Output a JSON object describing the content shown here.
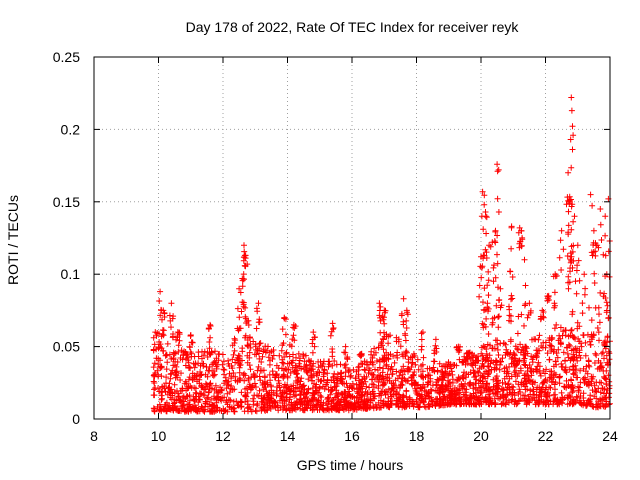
{
  "chart_data": {
    "type": "scatter",
    "title": "Day 178 of 2022, Rate Of TEC Index for receiver reyk",
    "xlabel": "GPS time / hours",
    "ylabel": "ROTI / TECUs",
    "xlim": [
      8,
      24
    ],
    "ylim": [
      0,
      0.25
    ],
    "xticks": [
      8,
      10,
      12,
      14,
      16,
      18,
      20,
      22,
      24
    ],
    "xtick_labels": [
      "8",
      "10",
      "12",
      "14",
      "16",
      "18",
      "20",
      "22",
      "24"
    ],
    "yticks": [
      0,
      0.05,
      0.1,
      0.15,
      0.2,
      0.25
    ],
    "ytick_labels": [
      "0",
      "0.05",
      "0.1",
      "0.15",
      "0.2",
      "0.25"
    ],
    "grid": true,
    "marker": "+",
    "color": "#ff0000",
    "data_range_x": [
      9.85,
      24
    ],
    "envelope": [
      {
        "x": 9.85,
        "low": 0.005,
        "high": 0.04
      },
      {
        "x": 10.0,
        "low": 0.005,
        "high": 0.06
      },
      {
        "x": 10.5,
        "low": 0.005,
        "high": 0.05
      },
      {
        "x": 11.0,
        "low": 0.005,
        "high": 0.045
      },
      {
        "x": 11.5,
        "low": 0.005,
        "high": 0.05
      },
      {
        "x": 12.0,
        "low": 0.005,
        "high": 0.045
      },
      {
        "x": 12.5,
        "low": 0.005,
        "high": 0.06
      },
      {
        "x": 13.0,
        "low": 0.005,
        "high": 0.055
      },
      {
        "x": 13.5,
        "low": 0.006,
        "high": 0.05
      },
      {
        "x": 14.0,
        "low": 0.006,
        "high": 0.055
      },
      {
        "x": 14.5,
        "low": 0.006,
        "high": 0.045
      },
      {
        "x": 15.0,
        "low": 0.006,
        "high": 0.04
      },
      {
        "x": 15.5,
        "low": 0.006,
        "high": 0.04
      },
      {
        "x": 16.0,
        "low": 0.006,
        "high": 0.035
      },
      {
        "x": 16.5,
        "low": 0.007,
        "high": 0.045
      },
      {
        "x": 17.0,
        "low": 0.008,
        "high": 0.06
      },
      {
        "x": 17.5,
        "low": 0.008,
        "high": 0.055
      },
      {
        "x": 18.0,
        "low": 0.008,
        "high": 0.045
      },
      {
        "x": 18.5,
        "low": 0.008,
        "high": 0.04
      },
      {
        "x": 19.0,
        "low": 0.01,
        "high": 0.04
      },
      {
        "x": 19.5,
        "low": 0.01,
        "high": 0.045
      },
      {
        "x": 20.0,
        "low": 0.01,
        "high": 0.05
      },
      {
        "x": 20.5,
        "low": 0.01,
        "high": 0.055
      },
      {
        "x": 21.0,
        "low": 0.01,
        "high": 0.05
      },
      {
        "x": 21.5,
        "low": 0.01,
        "high": 0.055
      },
      {
        "x": 22.0,
        "low": 0.01,
        "high": 0.06
      },
      {
        "x": 22.5,
        "low": 0.01,
        "high": 0.065
      },
      {
        "x": 23.0,
        "low": 0.01,
        "high": 0.06
      },
      {
        "x": 23.5,
        "low": 0.008,
        "high": 0.06
      },
      {
        "x": 24.0,
        "low": 0.008,
        "high": 0.06
      }
    ],
    "peaks": [
      {
        "x": 9.9,
        "y": 0.06
      },
      {
        "x": 10.05,
        "y": 0.088
      },
      {
        "x": 10.15,
        "y": 0.075
      },
      {
        "x": 10.4,
        "y": 0.08
      },
      {
        "x": 10.6,
        "y": 0.06
      },
      {
        "x": 11.0,
        "y": 0.058
      },
      {
        "x": 11.6,
        "y": 0.065
      },
      {
        "x": 12.5,
        "y": 0.09
      },
      {
        "x": 12.65,
        "y": 0.12
      },
      {
        "x": 12.68,
        "y": 0.113
      },
      {
        "x": 12.75,
        "y": 0.107
      },
      {
        "x": 12.6,
        "y": 0.097
      },
      {
        "x": 13.1,
        "y": 0.08
      },
      {
        "x": 13.9,
        "y": 0.07
      },
      {
        "x": 14.2,
        "y": 0.065
      },
      {
        "x": 14.8,
        "y": 0.06
      },
      {
        "x": 15.4,
        "y": 0.066
      },
      {
        "x": 15.8,
        "y": 0.05
      },
      {
        "x": 16.3,
        "y": 0.045
      },
      {
        "x": 16.85,
        "y": 0.08
      },
      {
        "x": 17.0,
        "y": 0.075
      },
      {
        "x": 17.6,
        "y": 0.083
      },
      {
        "x": 17.7,
        "y": 0.075
      },
      {
        "x": 18.2,
        "y": 0.06
      },
      {
        "x": 18.6,
        "y": 0.055
      },
      {
        "x": 19.3,
        "y": 0.05
      },
      {
        "x": 19.6,
        "y": 0.045
      },
      {
        "x": 20.05,
        "y": 0.157
      },
      {
        "x": 20.1,
        "y": 0.148
      },
      {
        "x": 20.15,
        "y": 0.14
      },
      {
        "x": 20.0,
        "y": 0.112
      },
      {
        "x": 20.25,
        "y": 0.12
      },
      {
        "x": 20.35,
        "y": 0.122
      },
      {
        "x": 20.5,
        "y": 0.176
      },
      {
        "x": 20.55,
        "y": 0.172
      },
      {
        "x": 20.45,
        "y": 0.13
      },
      {
        "x": 20.6,
        "y": 0.09
      },
      {
        "x": 20.2,
        "y": 0.08
      },
      {
        "x": 20.9,
        "y": 0.102
      },
      {
        "x": 20.95,
        "y": 0.133
      },
      {
        "x": 21.2,
        "y": 0.132
      },
      {
        "x": 21.25,
        "y": 0.13
      },
      {
        "x": 21.35,
        "y": 0.11
      },
      {
        "x": 21.5,
        "y": 0.08
      },
      {
        "x": 21.9,
        "y": 0.075
      },
      {
        "x": 22.1,
        "y": 0.085
      },
      {
        "x": 22.3,
        "y": 0.1
      },
      {
        "x": 22.5,
        "y": 0.13
      },
      {
        "x": 22.7,
        "y": 0.17
      },
      {
        "x": 22.75,
        "y": 0.15
      },
      {
        "x": 22.8,
        "y": 0.222
      },
      {
        "x": 22.82,
        "y": 0.213
      },
      {
        "x": 22.78,
        "y": 0.193
      },
      {
        "x": 22.9,
        "y": 0.14
      },
      {
        "x": 23.0,
        "y": 0.12
      },
      {
        "x": 23.2,
        "y": 0.1
      },
      {
        "x": 23.4,
        "y": 0.155
      },
      {
        "x": 23.5,
        "y": 0.13
      },
      {
        "x": 23.6,
        "y": 0.12
      },
      {
        "x": 23.7,
        "y": 0.145
      },
      {
        "x": 23.85,
        "y": 0.14
      },
      {
        "x": 23.95,
        "y": 0.152
      },
      {
        "x": 23.9,
        "y": 0.1
      }
    ]
  }
}
